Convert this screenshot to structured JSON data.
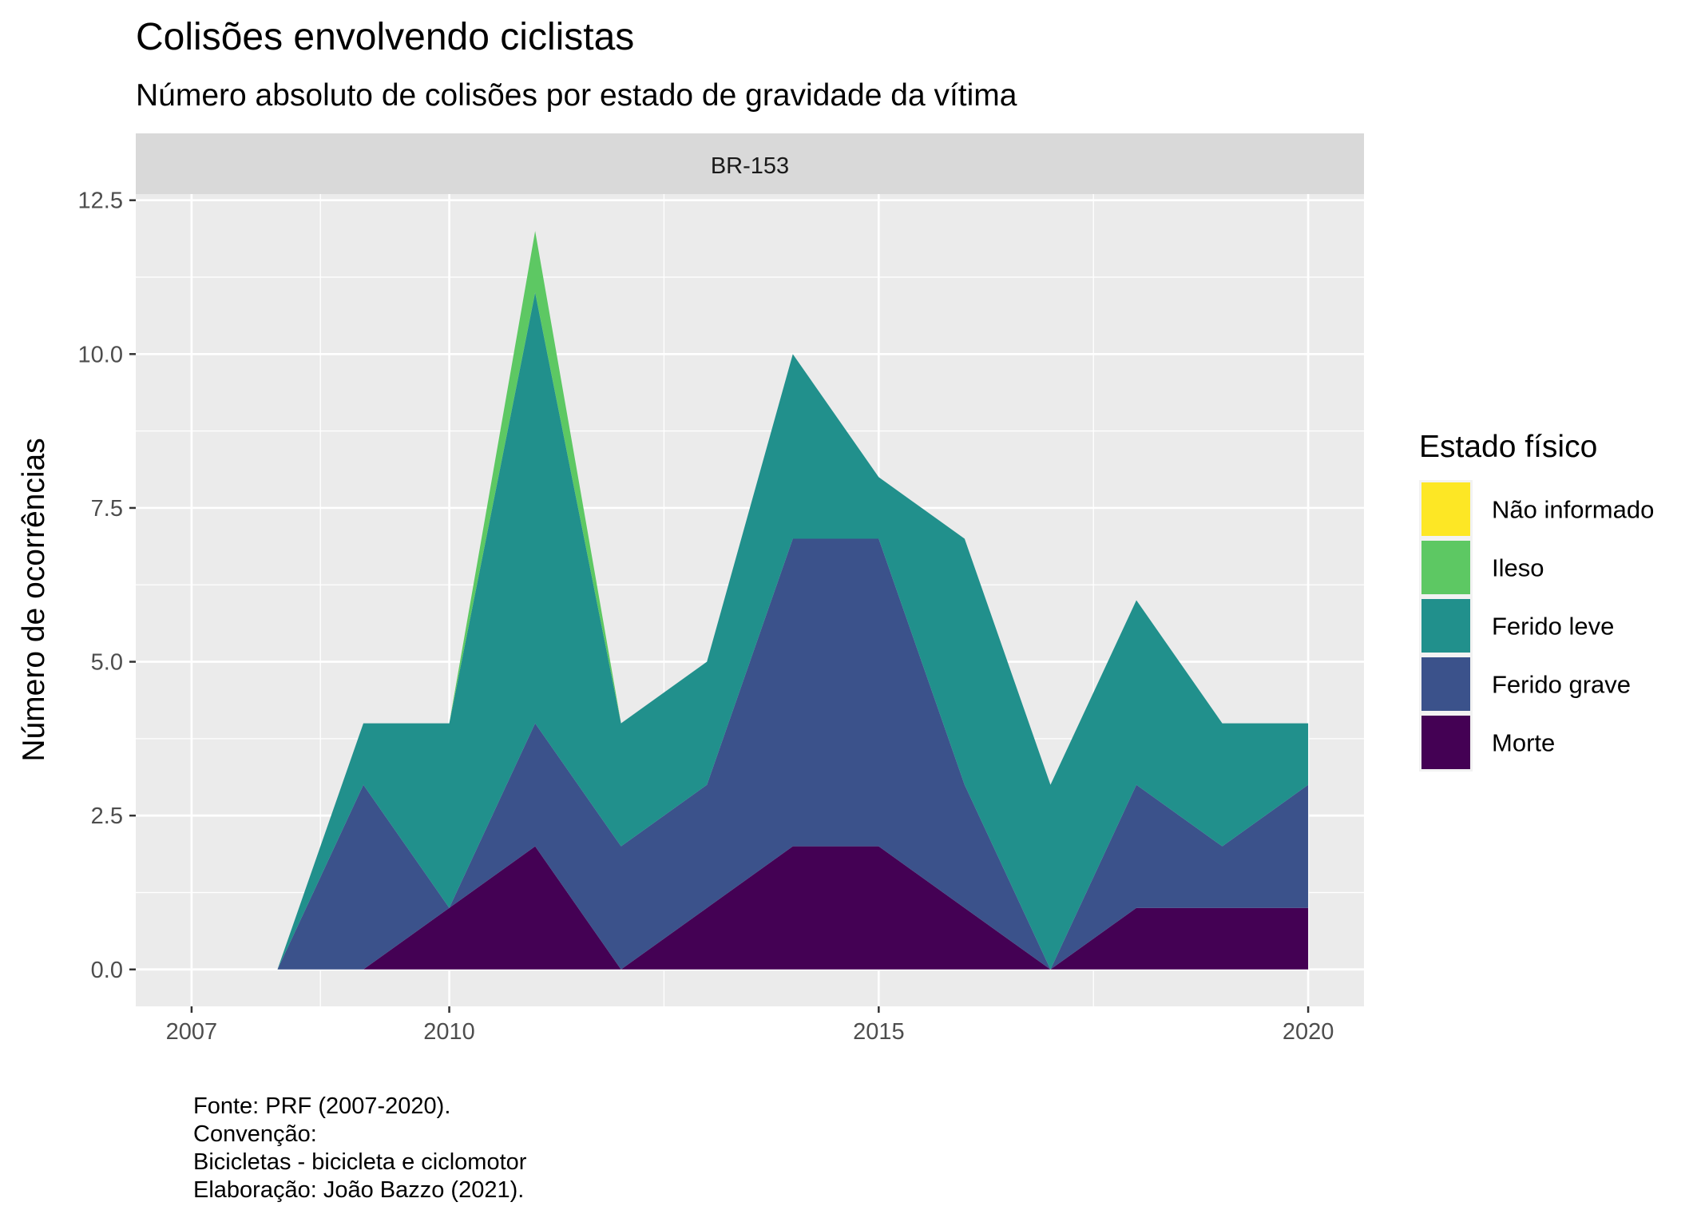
{
  "chart_data": {
    "type": "area",
    "stacked": true,
    "title": "Colisões envolvendo ciclistas",
    "subtitle": "Número absoluto de colisões por estado de gravidade da vítima",
    "facet": "BR-153",
    "xlabel": "",
    "ylabel": "Número de ocorrências",
    "x": [
      2008,
      2009,
      2010,
      2011,
      2012,
      2013,
      2014,
      2015,
      2016,
      2017,
      2018,
      2019,
      2020
    ],
    "xlim": [
      2006.35,
      2020.65
    ],
    "ylim": [
      -0.6,
      12.6
    ],
    "x_ticks": [
      2007,
      2010,
      2015,
      2020
    ],
    "x_tick_labels": [
      "2007",
      "2010",
      "2015",
      "2020"
    ],
    "y_ticks": [
      0,
      2.5,
      5,
      7.5,
      10,
      12.5
    ],
    "y_tick_labels": [
      "0.0",
      "2.5",
      "5.0",
      "7.5",
      "10.0",
      "12.5"
    ],
    "grid": true,
    "legend_title": "Estado físico",
    "legend_position": "right",
    "series": [
      {
        "name": "Morte",
        "color": "#440154",
        "values": [
          0,
          0,
          1,
          2,
          0,
          1,
          2,
          2,
          1,
          0,
          1,
          1,
          1
        ]
      },
      {
        "name": "Ferido grave",
        "color": "#3B528B",
        "values": [
          0,
          3,
          0,
          2,
          2,
          2,
          5,
          5,
          2,
          0,
          2,
          1,
          2
        ]
      },
      {
        "name": "Ferido leve",
        "color": "#21908C",
        "values": [
          0,
          1,
          3,
          7,
          2,
          2,
          3,
          1,
          4,
          3,
          3,
          2,
          1
        ]
      },
      {
        "name": "Ileso",
        "color": "#5DC863",
        "values": [
          0,
          0,
          0,
          1,
          0,
          0,
          0,
          0,
          0,
          0,
          0,
          0,
          0
        ]
      },
      {
        "name": "Não informado",
        "color": "#FDE725",
        "values": [
          0,
          0,
          0,
          0,
          0,
          0,
          0,
          0,
          0,
          0,
          0,
          0,
          0
        ]
      }
    ],
    "legend_order": [
      "Não informado",
      "Ileso",
      "Ferido leve",
      "Ferido grave",
      "Morte"
    ],
    "caption": [
      "Fonte: PRF (2007-2020).",
      "Convenção:",
      "Bicicletas - bicicleta e ciclomotor",
      "Elaboração: João Bazzo (2021)."
    ]
  }
}
